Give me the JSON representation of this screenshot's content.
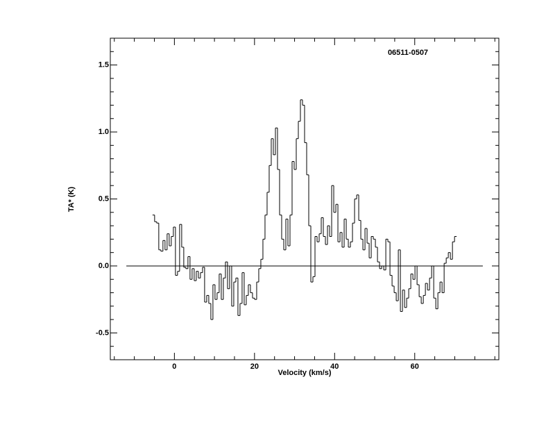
{
  "chart_data": {
    "type": "line",
    "drawstyle": "steps-mid",
    "title": "06511-0507",
    "x_label": "Velocity (km/s)",
    "y_label": "TA* (K)",
    "xlim": [
      -16,
      81
    ],
    "ylim": [
      -0.7,
      1.7
    ],
    "xticks": [
      0,
      20,
      40,
      60
    ],
    "yticks": [
      -0.5,
      {
        "value": 0,
        "label": "0.0"
      },
      0.5,
      {
        "value": 1,
        "label": "1.0"
      },
      1.5
    ],
    "xticks_minor": [
      -15,
      -10,
      -5,
      5,
      10,
      15,
      25,
      30,
      35,
      45,
      50,
      55,
      65,
      70,
      75,
      80
    ],
    "yticks_minor": [
      -0.6,
      -0.4,
      -0.3,
      -0.2,
      -0.1,
      0.1,
      0.2,
      0.3,
      0.4,
      0.6,
      0.7,
      0.8,
      0.9,
      1.1,
      1.2,
      1.3,
      1.4,
      1.6
    ],
    "baseline": {
      "y": 0,
      "xlim": [
        -12,
        77
      ]
    },
    "x": [
      -5.2,
      -4.68,
      -4.16,
      -3.64,
      -3.12,
      -2.6,
      -2.08,
      -1.56,
      -1.04,
      -0.52,
      0,
      0.52,
      1.04,
      1.56,
      2.08,
      2.6,
      3.12,
      3.64,
      4.16,
      4.68,
      5.2,
      5.72,
      6.24,
      6.76,
      7.28,
      7.8,
      8.32,
      8.84,
      9.36,
      9.88,
      10.4,
      10.92,
      11.44,
      11.96,
      12.48,
      13,
      13.52,
      14.04,
      14.56,
      15.08,
      15.6,
      16.12,
      16.64,
      17.16,
      17.68,
      18.2,
      18.72,
      19.24,
      19.76,
      20.28,
      20.8,
      21.32,
      21.84,
      22.36,
      22.88,
      23.4,
      23.92,
      24.44,
      24.96,
      25.48,
      26,
      26.52,
      27.04,
      27.56,
      28.08,
      28.6,
      29.12,
      29.64,
      30.16,
      30.68,
      31.2,
      31.72,
      32.24,
      32.76,
      33.28,
      33.8,
      34.32,
      34.84,
      35.36,
      35.88,
      36.4,
      36.92,
      37.44,
      37.96,
      38.48,
      39,
      39.52,
      40.04,
      40.56,
      41.08,
      41.6,
      42.12,
      42.64,
      43.16,
      43.68,
      44.2,
      44.72,
      45.24,
      45.76,
      46.28,
      46.8,
      47.32,
      47.84,
      48.36,
      48.88,
      49.4,
      49.92,
      50.44,
      50.96,
      51.48,
      52,
      52.52,
      53.04,
      53.56,
      54.08,
      54.6,
      55.12,
      55.64,
      56.16,
      56.68,
      57.2,
      57.72,
      58.24,
      58.76,
      59.28,
      59.8,
      60.32,
      60.84,
      61.36,
      61.88,
      62.4,
      62.92,
      63.44,
      63.96,
      64.48,
      65,
      65.52,
      66.04,
      66.56,
      67.08,
      67.6,
      68.12,
      68.64,
      69.16,
      69.68,
      70.2
    ],
    "series": [
      {
        "color": "#000000",
        "values": [
          0.38,
          0.33,
          0.32,
          0.12,
          0.11,
          0.19,
          0.12,
          0.24,
          0.15,
          0.22,
          0.29,
          -0.07,
          -0.04,
          0.31,
          0.14,
          -0.01,
          -0.02,
          0.07,
          -0.1,
          -0.02,
          -0.11,
          -0.04,
          -0.09,
          -0.05,
          -0.01,
          -0.27,
          -0.22,
          -0.28,
          -0.4,
          -0.14,
          -0.25,
          -0.2,
          -0.06,
          -0.25,
          -0.09,
          0.03,
          -0.17,
          0.0,
          -0.3,
          -0.12,
          -0.09,
          -0.37,
          -0.28,
          -0.05,
          -0.29,
          -0.22,
          -0.14,
          -0.2,
          -0.24,
          -0.25,
          -0.12,
          -0.02,
          0.05,
          0.2,
          0.38,
          0.55,
          0.75,
          0.95,
          0.83,
          1.03,
          0.72,
          0.38,
          0.2,
          0.12,
          0.35,
          0.15,
          0.38,
          0.78,
          0.72,
          0.95,
          1.08,
          1.24,
          1.2,
          0.92,
          0.68,
          0.3,
          -0.12,
          -0.08,
          0.22,
          0.18,
          0.24,
          0.36,
          0.22,
          0.16,
          0.3,
          0.22,
          0.6,
          0.4,
          0.46,
          0.18,
          0.25,
          0.14,
          0.35,
          0.2,
          0.14,
          0.18,
          0.32,
          0.5,
          0.53,
          0.34,
          0.2,
          0.12,
          0.28,
          0.17,
          0.06,
          0.22,
          0.2,
          0.14,
          0.03,
          -0.02,
          0.0,
          -0.03,
          0.2,
          0.18,
          -0.07,
          -0.15,
          -0.2,
          -0.26,
          0.12,
          -0.34,
          -0.18,
          -0.31,
          -0.24,
          -0.17,
          -0.06,
          -0.1,
          0.0,
          -0.14,
          -0.23,
          -0.28,
          -0.22,
          -0.13,
          -0.18,
          -0.09,
          0.0,
          -0.24,
          -0.32,
          -0.2,
          -0.12,
          -0.2,
          0.02,
          0.06,
          0.1,
          0.05,
          0.18,
          0.22
        ]
      }
    ]
  }
}
